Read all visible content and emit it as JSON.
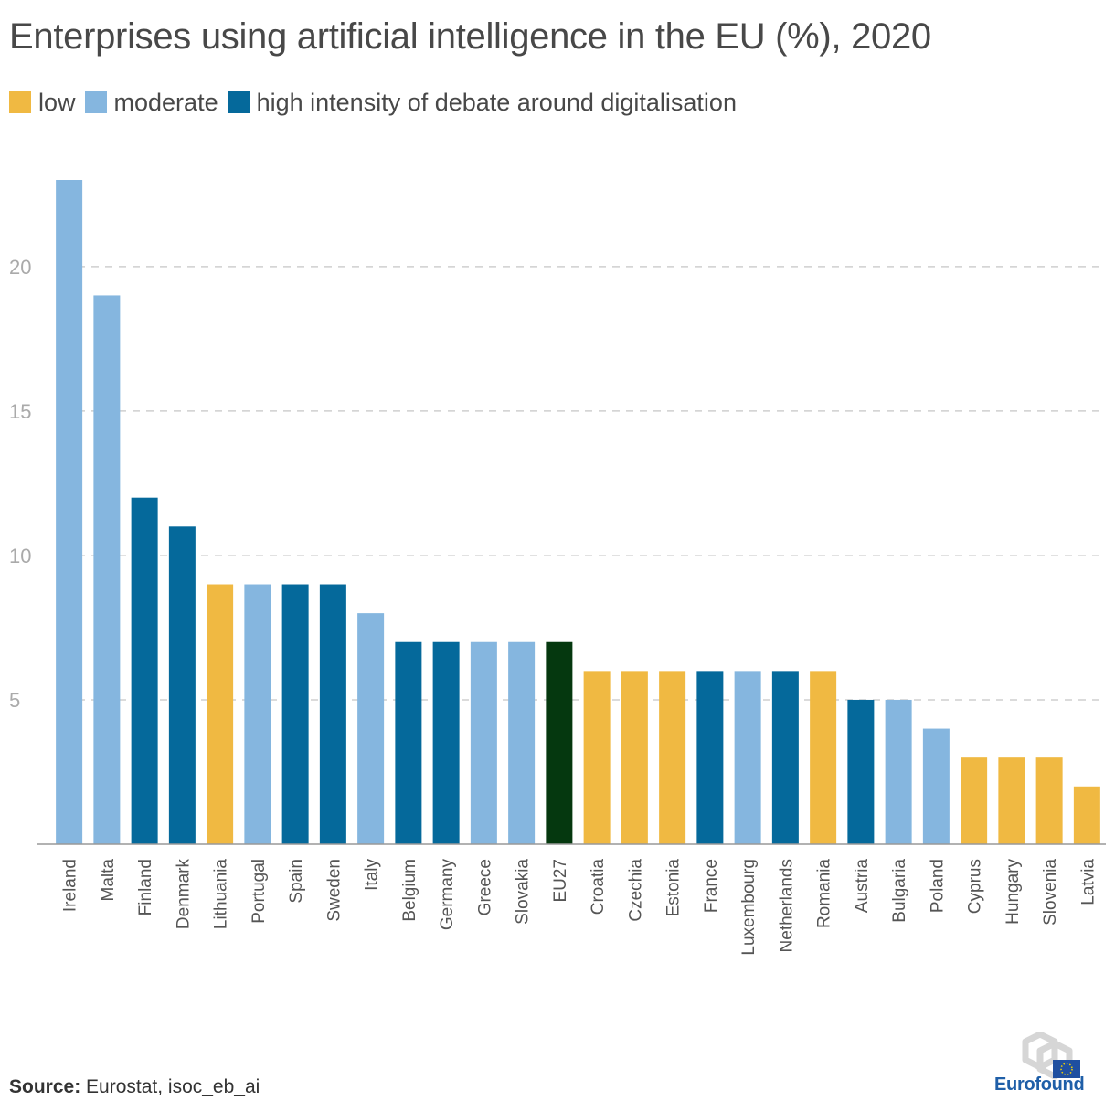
{
  "chart_data": {
    "type": "bar",
    "title": "Enterprises using artificial intelligence in the EU (%), 2020",
    "legend": [
      {
        "key": "low",
        "label": "low",
        "color": "#f0b942"
      },
      {
        "key": "moderate",
        "label": "moderate",
        "color": "#85b6df"
      },
      {
        "key": "high",
        "label": "high intensity of debate around digitalisation",
        "color": "#05699b"
      }
    ],
    "eu_color": "#05380f",
    "categories": [
      "Ireland",
      "Malta",
      "Finland",
      "Denmark",
      "Lithuania",
      "Portugal",
      "Spain",
      "Sweden",
      "Italy",
      "Belgium",
      "Germany",
      "Greece",
      "Slovakia",
      "EU27",
      "Croatia",
      "Czechia",
      "Estonia",
      "France",
      "Luxembourg",
      "Netherlands",
      "Romania",
      "Austria",
      "Bulgaria",
      "Poland",
      "Cyprus",
      "Hungary",
      "Slovenia",
      "Latvia"
    ],
    "values": [
      23,
      19,
      12,
      11,
      9,
      9,
      9,
      9,
      8,
      7,
      7,
      7,
      7,
      7,
      6,
      6,
      6,
      6,
      6,
      6,
      6,
      5,
      5,
      4,
      3,
      3,
      3,
      2
    ],
    "groups": [
      "moderate",
      "moderate",
      "high",
      "high",
      "low",
      "moderate",
      "high",
      "high",
      "moderate",
      "high",
      "high",
      "moderate",
      "moderate",
      "eu",
      "low",
      "low",
      "low",
      "high",
      "moderate",
      "high",
      "low",
      "high",
      "moderate",
      "moderate",
      "low",
      "low",
      "low",
      "low"
    ],
    "y_ticks": [
      5,
      10,
      15,
      20
    ],
    "ylim": [
      0,
      23
    ],
    "grid": true,
    "legend_position": "top-left"
  },
  "source": {
    "label": "Source:",
    "text": " Eurostat, isoc_eb_ai"
  },
  "logo": {
    "name": "Eurofound",
    "icon": "eurofound-logo-icon"
  }
}
